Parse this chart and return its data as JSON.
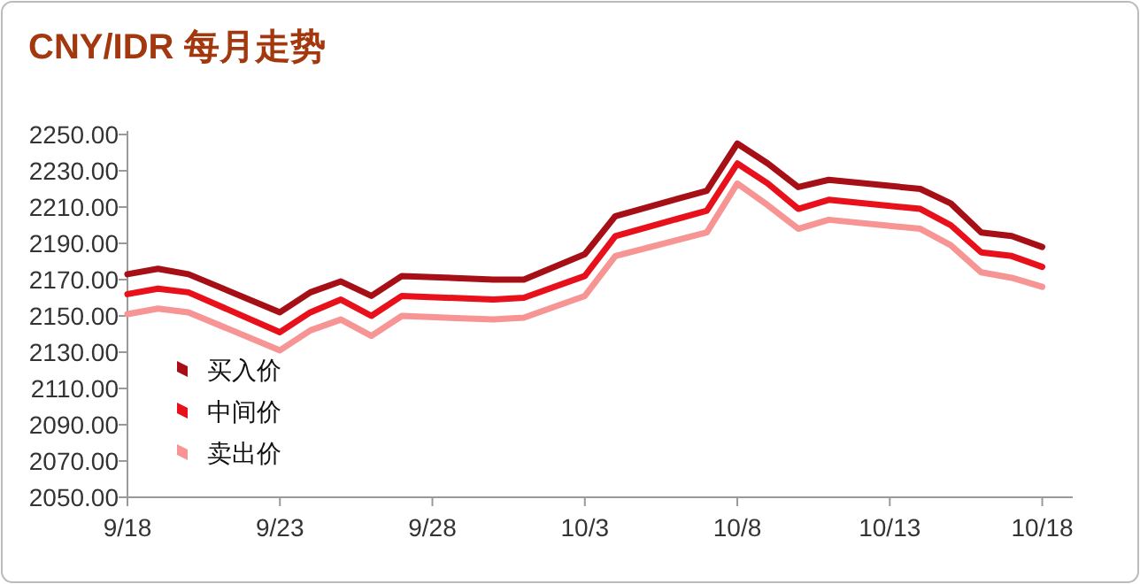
{
  "chart_data": {
    "type": "line",
    "title": "CNY/IDR 每月走势",
    "legend": "left",
    "marker": "none",
    "grid": false,
    "line_style": "solid",
    "x": [
      "--09-18",
      "--09-19",
      "--09-20",
      "--09-23",
      "--09-24",
      "--09-25",
      "--09-26",
      "--09-27",
      "--09-30",
      "--10-01",
      "--10-03",
      "--10-04",
      "--10-07",
      "--10-08",
      "--10-09",
      "--10-10",
      "--10-11",
      "--10-14",
      "--10-15",
      "--10-16",
      "--10-17",
      "--10-18"
    ],
    "series": [
      {
        "name": "买入价",
        "color": "#a50f15",
        "values": [
          2173,
          2176,
          2173,
          2152,
          2163,
          2169,
          2161,
          2172,
          2170,
          2170,
          2184,
          2205,
          2219,
          2245,
          2234,
          2221,
          2225,
          2220,
          2212,
          2196,
          2194,
          2188
        ]
      },
      {
        "name": "中间价",
        "color": "#e8101a",
        "values": [
          2162,
          2165,
          2163,
          2141,
          2152,
          2159,
          2150,
          2161,
          2159,
          2160,
          2172,
          2194,
          2208,
          2234,
          2223,
          2209,
          2214,
          2209,
          2200,
          2185,
          2183,
          2177
        ]
      },
      {
        "name": "卖出价",
        "color": "#f79494",
        "values": [
          2151,
          2154,
          2152,
          2131,
          2142,
          2148,
          2139,
          2150,
          2148,
          2149,
          2161,
          2183,
          2196,
          2223,
          2211,
          2198,
          2203,
          2198,
          2189,
          2174,
          2171,
          2166
        ]
      }
    ],
    "xlim": [
      "--09-18",
      "--10-19"
    ],
    "xticks": [
      {
        "value": "--09-18",
        "label": "9/18"
      },
      {
        "value": "--09-23",
        "label": "9/23"
      },
      {
        "value": "--09-28",
        "label": "9/28"
      },
      {
        "value": "--10-03",
        "label": "10/3"
      },
      {
        "value": "--10-08",
        "label": "10/8"
      },
      {
        "value": "--10-13",
        "label": "10/13"
      },
      {
        "value": "--10-18",
        "label": "10/18"
      }
    ],
    "ylim": [
      2050,
      2250
    ],
    "yticks": [
      {
        "value": 2050,
        "label": "2050.00"
      },
      {
        "value": 2070,
        "label": "2070.00"
      },
      {
        "value": 2090,
        "label": "2090.00"
      },
      {
        "value": 2110,
        "label": "2110.00"
      },
      {
        "value": 2130,
        "label": "2130.00"
      },
      {
        "value": 2150,
        "label": "2150.00"
      },
      {
        "value": 2170,
        "label": "2170.00"
      },
      {
        "value": 2190,
        "label": "2190.00"
      },
      {
        "value": 2210,
        "label": "2210.00"
      },
      {
        "value": 2230,
        "label": "2230.00"
      },
      {
        "value": 2250,
        "label": "2250.00"
      }
    ]
  }
}
